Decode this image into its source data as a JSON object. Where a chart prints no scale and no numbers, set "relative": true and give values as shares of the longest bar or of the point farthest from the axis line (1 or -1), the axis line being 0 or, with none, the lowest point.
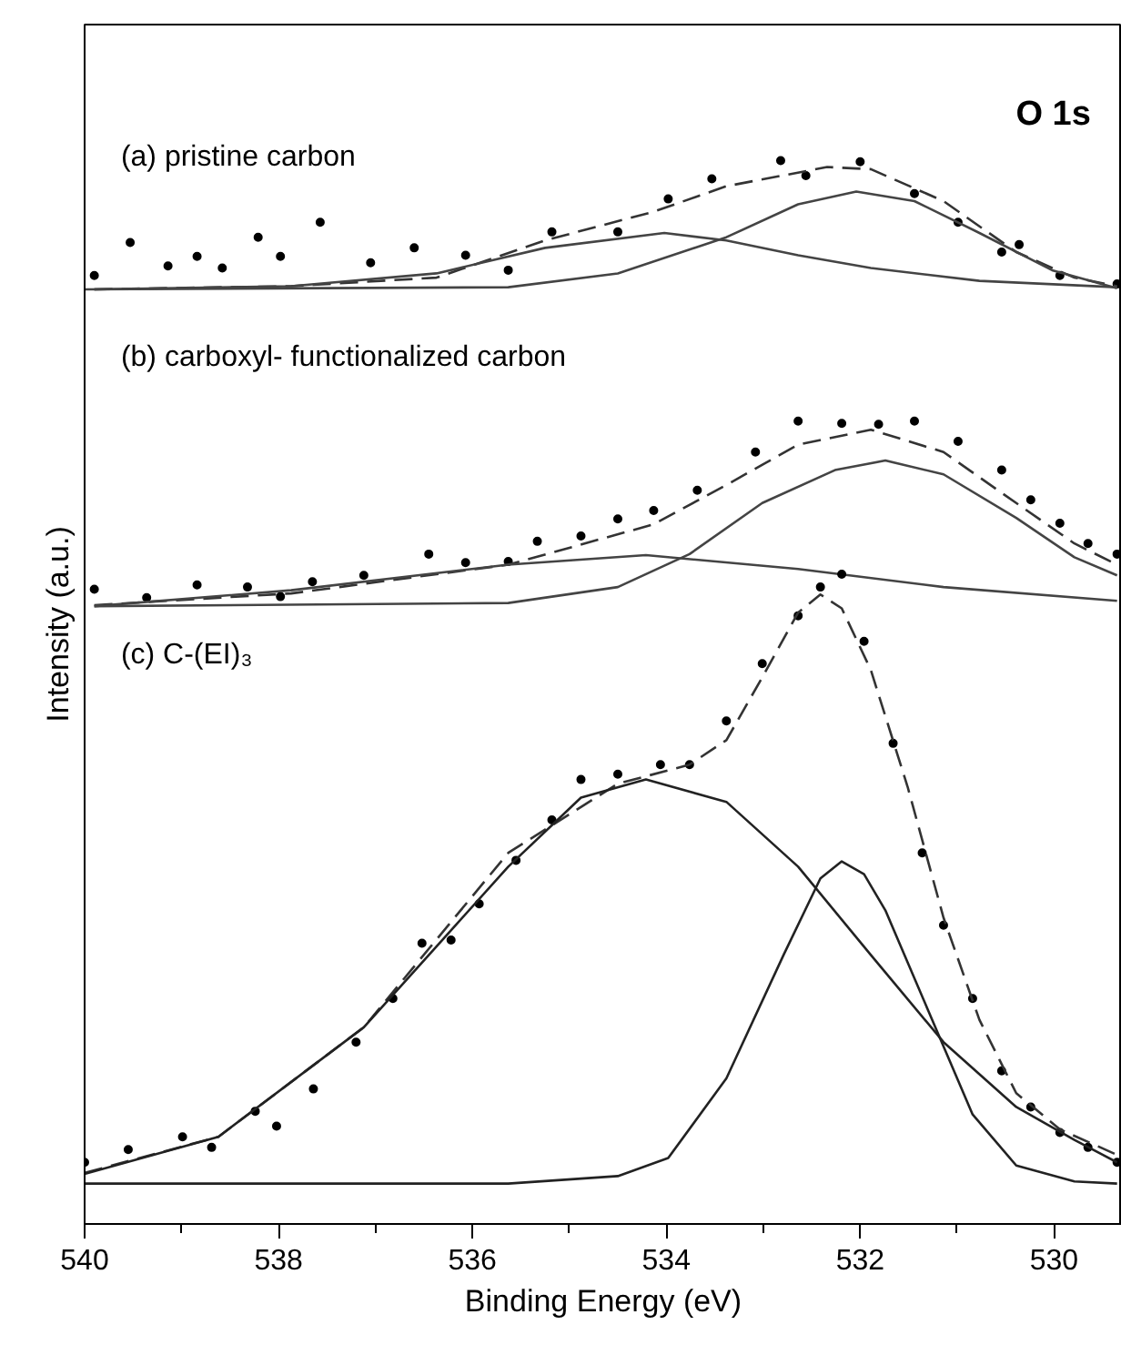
{
  "chart_data": {
    "type": "line",
    "relative": true,
    "xlabel": "Binding Energy (eV)",
    "ylabel": "Intensity (a.u.)",
    "xlim": [
      540,
      529.3
    ],
    "xticks": [
      540,
      538,
      536,
      534,
      532,
      530
    ],
    "grid": false,
    "annotations": [
      "O 1s",
      "(a) pristine carbon",
      "(b) carboxyl- functionalized carbon",
      "(c) C-(EI)₃"
    ],
    "series": [
      {
        "type": "scatter",
        "marker": "circle",
        "color": "#000000",
        "x": [
          539.9,
          539.53,
          539.14,
          538.84,
          538.58,
          538.21,
          537.98,
          537.57,
          537.05,
          536.6,
          536.07,
          535.63,
          535.18,
          534.5,
          533.98,
          533.53,
          532.82,
          532.56,
          532.0,
          531.44,
          530.99,
          530.54,
          530.36,
          529.94,
          529.35
        ],
        "values": [
          0.892,
          0.923,
          0.901,
          0.91,
          0.899,
          0.928,
          0.91,
          0.942,
          0.904,
          0.918,
          0.911,
          0.897,
          0.933,
          0.933,
          0.964,
          0.983,
          1.0,
          0.986,
          0.999,
          0.969,
          0.942,
          0.914,
          0.921,
          0.892,
          0.884
        ]
      },
      {
        "type": "line",
        "line_style": "dashed",
        "color": "#333333",
        "x": [
          539.9,
          537.87,
          536.37,
          535.25,
          534.13,
          533.38,
          532.34,
          531.89,
          531.14,
          530.39,
          529.79,
          529.35
        ],
        "values": [
          0.879,
          0.882,
          0.89,
          0.925,
          0.952,
          0.976,
          0.994,
          0.992,
          0.962,
          0.914,
          0.89,
          0.882
        ]
      },
      {
        "type": "line",
        "line_style": "solid",
        "color": "#444444",
        "x": [
          539.9,
          537.87,
          536.37,
          535.25,
          534.02,
          533.38,
          532.64,
          531.89,
          530.77,
          529.35
        ],
        "values": [
          0.879,
          0.882,
          0.894,
          0.918,
          0.932,
          0.925,
          0.911,
          0.899,
          0.887,
          0.881
        ]
      },
      {
        "line_style": "solid",
        "color": "#444444",
        "x": [
          540.0,
          535.63,
          534.5,
          533.38,
          532.64,
          532.04,
          531.44,
          530.77,
          530.02,
          529.35
        ],
        "values": [
          0.879,
          0.881,
          0.894,
          0.928,
          0.959,
          0.971,
          0.962,
          0.932,
          0.897,
          0.88
        ]
      },
      {
        "type": "scatter",
        "marker": "circle",
        "color": "#000000",
        "x": [
          539.9,
          539.36,
          538.84,
          538.32,
          537.98,
          537.65,
          537.12,
          536.45,
          536.07,
          535.63,
          535.33,
          534.88,
          534.5,
          534.13,
          533.68,
          533.08,
          532.64,
          532.19,
          531.81,
          531.44,
          530.99,
          530.54,
          530.24,
          529.94,
          529.65,
          529.35
        ],
        "values": [
          0.597,
          0.589,
          0.601,
          0.599,
          0.59,
          0.604,
          0.61,
          0.63,
          0.622,
          0.623,
          0.642,
          0.647,
          0.663,
          0.671,
          0.69,
          0.726,
          0.755,
          0.753,
          0.752,
          0.755,
          0.736,
          0.709,
          0.681,
          0.659,
          0.64,
          0.63
        ]
      },
      {
        "type": "line",
        "line_style": "dashed",
        "color": "#333333",
        "x": [
          539.9,
          537.87,
          535.63,
          534.13,
          533.38,
          532.64,
          531.89,
          531.14,
          530.39,
          529.79,
          529.35
        ],
        "values": [
          0.582,
          0.593,
          0.62,
          0.658,
          0.695,
          0.733,
          0.747,
          0.726,
          0.678,
          0.64,
          0.62
        ]
      },
      {
        "type": "line",
        "line_style": "solid",
        "color": "#444444",
        "x": [
          539.9,
          537.87,
          535.63,
          534.21,
          532.64,
          531.14,
          529.35
        ],
        "values": [
          0.581,
          0.596,
          0.62,
          0.629,
          0.616,
          0.599,
          0.586
        ]
      },
      {
        "type": "line",
        "line_style": "solid",
        "color": "#444444",
        "x": [
          539.9,
          535.63,
          534.5,
          533.76,
          533.01,
          532.26,
          531.74,
          531.14,
          530.39,
          529.79,
          529.35
        ],
        "values": [
          0.581,
          0.584,
          0.599,
          0.63,
          0.678,
          0.709,
          0.718,
          0.705,
          0.664,
          0.627,
          0.61
        ]
      },
      {
        "type": "scatter",
        "marker": "circle",
        "color": "#000000",
        "x": [
          540.0,
          539.55,
          538.99,
          538.69,
          538.24,
          538.02,
          537.64,
          537.2,
          536.82,
          536.52,
          536.22,
          535.93,
          535.55,
          535.18,
          534.88,
          534.5,
          534.06,
          533.76,
          533.38,
          533.01,
          532.64,
          532.41,
          532.19,
          531.96,
          531.66,
          531.36,
          531.14,
          530.84,
          530.54,
          530.24,
          529.94,
          529.65,
          529.35
        ],
        "values": [
          0.058,
          0.07,
          0.082,
          0.072,
          0.106,
          0.092,
          0.127,
          0.171,
          0.212,
          0.264,
          0.267,
          0.301,
          0.342,
          0.38,
          0.418,
          0.423,
          0.432,
          0.432,
          0.473,
          0.527,
          0.572,
          0.599,
          0.611,
          0.548,
          0.452,
          0.349,
          0.281,
          0.212,
          0.144,
          0.11,
          0.086,
          0.072,
          0.058
        ]
      },
      {
        "type": "line",
        "line_style": "dashed",
        "color": "#333333",
        "x": [
          540.0,
          538.62,
          537.12,
          535.63,
          534.5,
          533.76,
          533.38,
          533.01,
          532.64,
          532.41,
          532.19,
          531.89,
          531.51,
          531.14,
          530.77,
          530.39,
          529.94,
          529.35
        ],
        "values": [
          0.048,
          0.082,
          0.185,
          0.349,
          0.414,
          0.432,
          0.455,
          0.514,
          0.575,
          0.592,
          0.579,
          0.521,
          0.411,
          0.288,
          0.192,
          0.123,
          0.089,
          0.065
        ]
      },
      {
        "type": "line",
        "line_style": "solid",
        "color": "#222222",
        "x": [
          540.0,
          538.62,
          537.12,
          535.63,
          534.88,
          534.21,
          533.38,
          532.64,
          531.89,
          531.14,
          530.39,
          529.79,
          529.35
        ],
        "values": [
          0.047,
          0.082,
          0.185,
          0.336,
          0.401,
          0.418,
          0.397,
          0.336,
          0.253,
          0.171,
          0.11,
          0.079,
          0.058
        ]
      },
      {
        "type": "line",
        "line_style": "solid",
        "color": "#222222",
        "x": [
          540.0,
          535.63,
          534.5,
          533.98,
          533.38,
          532.79,
          532.41,
          532.19,
          531.96,
          531.74,
          531.29,
          530.84,
          530.39,
          529.79,
          529.35
        ],
        "values": [
          0.038,
          0.038,
          0.045,
          0.062,
          0.137,
          0.253,
          0.325,
          0.341,
          0.329,
          0.295,
          0.199,
          0.103,
          0.055,
          0.04,
          0.038
        ]
      }
    ]
  }
}
